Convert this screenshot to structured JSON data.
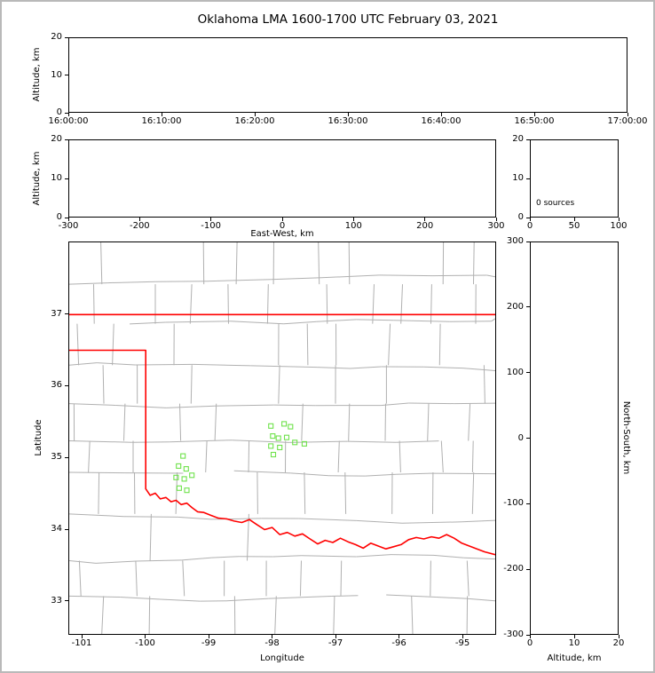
{
  "title": "Oklahoma LMA 1600-1700 UTC February 03, 2021",
  "panels": {
    "time_height": {
      "ylabel": "Altitude, km",
      "yticks": [
        "20",
        "10",
        "0"
      ],
      "xticks": [
        "16:00:00",
        "16:10:00",
        "16:20:00",
        "16:30:00",
        "16:40:00",
        "16:50:00",
        "17:00:00"
      ]
    },
    "ew_height": {
      "ylabel": "Altitude, km",
      "xlabel": "East-West, km",
      "yticks": [
        "20",
        "10",
        "0"
      ],
      "xticks": [
        "-300",
        "-200",
        "-100",
        "0",
        "100",
        "200",
        "300"
      ]
    },
    "histogram": {
      "yticks": [
        "20",
        "10",
        "0"
      ],
      "xticks": [
        "0",
        "50",
        "100"
      ],
      "annotation": "0 sources"
    },
    "plan_view": {
      "ylabel": "Latitude",
      "xlabel": "Longitude",
      "yticks": [
        "37",
        "36",
        "35",
        "34",
        "33"
      ],
      "xticks": [
        "-101",
        "-100",
        "-99",
        "-98",
        "-97",
        "-96",
        "-95"
      ]
    },
    "ns_height": {
      "ylabel_right": "North-South, km",
      "xlabel": "Altitude, km",
      "yticks": [
        "300",
        "200",
        "100",
        "0",
        "-100",
        "-200",
        "-300"
      ],
      "xticks": [
        "0",
        "10",
        "20"
      ]
    }
  },
  "colors": {
    "state_border": "#ff0000",
    "county_line": "#b0b0b0",
    "station": "#6fe24b",
    "axis": "#000000"
  },
  "chart_data": {
    "type": "scatter",
    "title": "Oklahoma LMA 1600-1700 UTC February 03, 2021",
    "panels": [
      {
        "name": "time_height",
        "ylabel": "Altitude, km",
        "xrange": [
          "16:00:00",
          "17:00:00"
        ],
        "yrange": [
          0,
          20
        ],
        "points": []
      },
      {
        "name": "ew_height",
        "xlabel": "East-West, km",
        "ylabel": "Altitude, km",
        "xrange": [
          -300,
          300
        ],
        "yrange": [
          0,
          20
        ],
        "points": []
      },
      {
        "name": "altitude_histogram",
        "xrange": [
          0,
          100
        ],
        "yrange": [
          0,
          20
        ],
        "annotation": "0 sources",
        "points": []
      },
      {
        "name": "plan_view",
        "xlabel": "Longitude",
        "ylabel": "Latitude",
        "xrange": [
          -101.21,
          -94.47
        ],
        "yrange": [
          32.53,
          38.01
        ],
        "stations_lon_lat": [
          [
            -99.41,
            35.02
          ],
          [
            -99.48,
            34.88
          ],
          [
            -99.36,
            34.84
          ],
          [
            -99.52,
            34.72
          ],
          [
            -99.39,
            34.7
          ],
          [
            -99.27,
            34.75
          ],
          [
            -99.47,
            34.57
          ],
          [
            -99.35,
            34.54
          ],
          [
            -98.02,
            35.44
          ],
          [
            -97.81,
            35.47
          ],
          [
            -97.71,
            35.43
          ],
          [
            -97.99,
            35.3
          ],
          [
            -97.9,
            35.27
          ],
          [
            -97.77,
            35.28
          ],
          [
            -98.02,
            35.16
          ],
          [
            -97.88,
            35.14
          ],
          [
            -97.64,
            35.21
          ],
          [
            -97.49,
            35.19
          ],
          [
            -97.98,
            35.04
          ]
        ]
      },
      {
        "name": "ns_height",
        "xlabel": "Altitude, km",
        "ylabel": "North-South, km",
        "xrange": [
          0,
          20
        ],
        "yrange": [
          -300,
          300
        ],
        "points": []
      }
    ]
  }
}
